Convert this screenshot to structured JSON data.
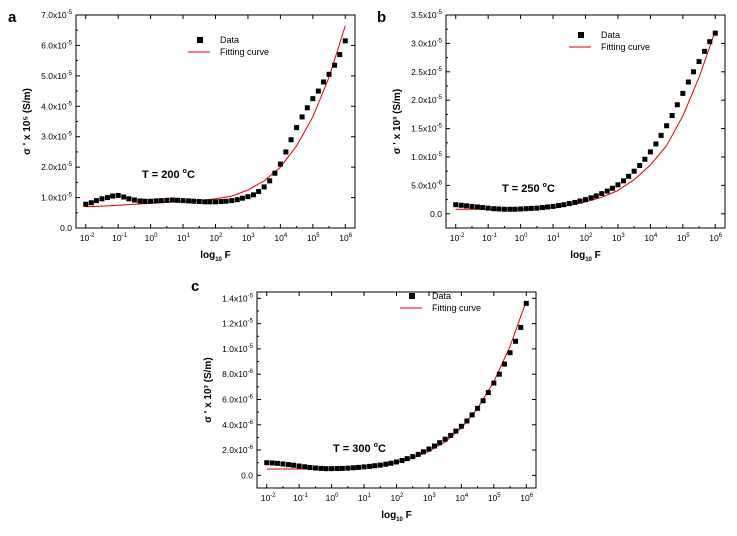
{
  "colors": {
    "data_marker": "#000000",
    "fit_curve": "#e00000",
    "axes": "#000000"
  },
  "chart_data": [
    {
      "panel_label": "a",
      "type": "scatter",
      "x_scale": "log10",
      "xlabel_main": "log",
      "xlabel_sub": "10",
      "xlabel_end": " F",
      "ylabel": "σ ' x 10⁵ (S/m)",
      "xlim": [
        -2.3,
        6.3
      ],
      "ylim": [
        0,
        7e-05
      ],
      "x_ticks": [
        -2,
        -1,
        0,
        1,
        2,
        3,
        4,
        5,
        6
      ],
      "x_tick_base": "10",
      "x_tick_exps": [
        "-2",
        "-1",
        "0",
        "1",
        "2",
        "3",
        "4",
        "5",
        "6"
      ],
      "y_ticks": [
        0,
        1e-05,
        2e-05,
        3e-05,
        4e-05,
        5e-05,
        6e-05,
        7e-05
      ],
      "y_tick_labels": [
        "0.0",
        "1.0x10",
        "2.0x10",
        "3.0x10",
        "4.0x10",
        "5.0x10",
        "6.0x10",
        "7.0x10"
      ],
      "y_tick_exp": "-5",
      "annotation": "T = 200 °C",
      "legend": [
        "Data",
        "Fitting curve"
      ],
      "series": [
        {
          "name": "Data",
          "x": [
            -2.0,
            -1.83,
            -1.67,
            -1.5,
            -1.33,
            -1.17,
            -1.0,
            -0.83,
            -0.67,
            -0.5,
            -0.33,
            -0.17,
            0.0,
            0.17,
            0.33,
            0.5,
            0.67,
            0.83,
            1.0,
            1.17,
            1.33,
            1.5,
            1.67,
            1.83,
            2.0,
            2.17,
            2.33,
            2.5,
            2.67,
            2.83,
            3.0,
            3.17,
            3.33,
            3.5,
            3.67,
            3.83,
            4.0,
            4.17,
            4.33,
            4.5,
            4.67,
            4.83,
            5.0,
            5.17,
            5.33,
            5.5,
            5.67,
            5.83,
            6.0
          ],
          "y": [
            7.8e-06,
            8.3e-06,
            9e-06,
            9.6e-06,
            1e-05,
            1.05e-05,
            1.07e-05,
            1.02e-05,
            9.6e-06,
            9.2e-06,
            8.9e-06,
            8.8e-06,
            8.8e-06,
            8.9e-06,
            9e-06,
            9.1e-06,
            9.2e-06,
            9.1e-06,
            9e-06,
            8.9e-06,
            8.8e-06,
            8.7e-06,
            8.6e-06,
            8.6e-06,
            8.6e-06,
            8.7e-06,
            8.8e-06,
            9e-06,
            9.3e-06,
            9.8e-06,
            1.03e-05,
            1.09e-05,
            1.2e-05,
            1.35e-05,
            1.55e-05,
            1.8e-05,
            2.1e-05,
            2.5e-05,
            2.9e-05,
            3.3e-05,
            3.65e-05,
            3.95e-05,
            4.25e-05,
            4.5e-05,
            4.8e-05,
            5.05e-05,
            5.35e-05,
            5.7e-05,
            6.15e-05
          ]
        },
        {
          "name": "Fitting curve",
          "x": [
            -2.0,
            -1.5,
            -1.0,
            -0.5,
            0.0,
            0.5,
            1.0,
            1.5,
            2.0,
            2.5,
            3.0,
            3.5,
            4.0,
            4.5,
            5.0,
            5.5,
            6.0
          ],
          "y": [
            7e-06,
            7.2e-06,
            7.5e-06,
            7.8e-06,
            8.1e-06,
            8.4e-06,
            8.7e-06,
            9e-06,
            9.6e-06,
            1.05e-05,
            1.25e-05,
            1.55e-05,
            2e-05,
            2.7e-05,
            3.65e-05,
            4.95e-05,
            6.65e-05
          ]
        }
      ]
    },
    {
      "panel_label": "b",
      "type": "scatter",
      "x_scale": "log10",
      "xlabel_main": "log",
      "xlabel_sub": "10",
      "xlabel_end": " F",
      "ylabel": "σ ' x 10³ (S/m)",
      "xlim": [
        -2.3,
        6.3
      ],
      "ylim": [
        -2.5e-06,
        3.5e-05
      ],
      "x_ticks": [
        -2,
        -1,
        0,
        1,
        2,
        3,
        4,
        5,
        6
      ],
      "x_tick_base": "10",
      "x_tick_exps": [
        "-2",
        "-1",
        "0",
        "1",
        "2",
        "3",
        "4",
        "5",
        "6"
      ],
      "y_ticks": [
        0,
        5e-06,
        1e-05,
        1.5e-05,
        2e-05,
        2.5e-05,
        3e-05,
        3.5e-05
      ],
      "y_tick_labels": [
        "0.0",
        "5.0x10",
        "1.0x10",
        "1.5x10",
        "2.0x10",
        "2.5x10",
        "3.0x10",
        "3.5x10"
      ],
      "y_tick_exps": [
        "",
        "-6",
        "-5",
        "-5",
        "-5",
        "-5",
        "-5",
        "-5"
      ],
      "annotation": "T = 250 °C",
      "legend": [
        "Data",
        "Fitting curve"
      ],
      "series": [
        {
          "name": "Data",
          "x": [
            -2.0,
            -1.83,
            -1.67,
            -1.5,
            -1.33,
            -1.17,
            -1.0,
            -0.83,
            -0.67,
            -0.5,
            -0.33,
            -0.17,
            0.0,
            0.17,
            0.33,
            0.5,
            0.67,
            0.83,
            1.0,
            1.17,
            1.33,
            1.5,
            1.67,
            1.83,
            2.0,
            2.17,
            2.33,
            2.5,
            2.67,
            2.83,
            3.0,
            3.17,
            3.33,
            3.5,
            3.67,
            3.83,
            4.0,
            4.17,
            4.33,
            4.5,
            4.67,
            4.83,
            5.0,
            5.17,
            5.33,
            5.5,
            5.67,
            5.83,
            6.0
          ],
          "y": [
            1.6e-06,
            1.5e-06,
            1.4e-06,
            1.3e-06,
            1.2e-06,
            1.1e-06,
            1e-06,
            9e-07,
            8.5e-07,
            8e-07,
            8e-07,
            8e-07,
            8.5e-07,
            9e-07,
            9.5e-07,
            1e-06,
            1.1e-06,
            1.2e-06,
            1.3e-06,
            1.45e-06,
            1.6e-06,
            1.8e-06,
            2e-06,
            2.25e-06,
            2.5e-06,
            2.8e-06,
            3.15e-06,
            3.55e-06,
            4e-06,
            4.5e-06,
            5.1e-06,
            5.8e-06,
            6.6e-06,
            7.5e-06,
            8.5e-06,
            9.6e-06,
            1.09e-05,
            1.23e-05,
            1.38e-05,
            1.55e-05,
            1.73e-05,
            1.92e-05,
            2.12e-05,
            2.32e-05,
            2.5e-05,
            2.68e-05,
            2.86e-05,
            3.03e-05,
            3.18e-05
          ]
        },
        {
          "name": "Fitting curve",
          "x": [
            -2.0,
            -1.5,
            -1.0,
            -0.5,
            0.0,
            0.5,
            1.0,
            1.5,
            2.0,
            2.5,
            3.0,
            3.5,
            4.0,
            4.5,
            5.0,
            5.5,
            6.0
          ],
          "y": [
            8e-07,
            8e-07,
            8e-07,
            8.2e-07,
            8.6e-07,
            9.5e-07,
            1.1e-06,
            1.5e-06,
            2.1e-06,
            2.9e-06,
            4.1e-06,
            6e-06,
            8.6e-06,
            1.2e-05,
            1.72e-05,
            2.4e-05,
            3.22e-05
          ]
        }
      ]
    },
    {
      "panel_label": "c",
      "type": "scatter",
      "x_scale": "log10",
      "xlabel_main": "log",
      "xlabel_sub": "10",
      "xlabel_end": " F",
      "ylabel": "σ ' x 10³ (S/m)",
      "xlim": [
        -2.3,
        6.3
      ],
      "ylim": [
        -1e-06,
        1.45e-05
      ],
      "x_ticks": [
        -2,
        -1,
        0,
        1,
        2,
        3,
        4,
        5,
        6
      ],
      "x_tick_base": "10",
      "x_tick_exps": [
        "-2",
        "-1",
        "0",
        "1",
        "2",
        "3",
        "4",
        "5",
        "6"
      ],
      "y_ticks": [
        0,
        2e-06,
        4e-06,
        6e-06,
        8e-06,
        1e-05,
        1.2e-05,
        1.4e-05
      ],
      "y_tick_labels": [
        "0.0",
        "2.0x10",
        "4.0x10",
        "6.0x10",
        "8.0x10",
        "1.0x10",
        "1.2x10",
        "1.4x10"
      ],
      "y_tick_exps": [
        "",
        "-6",
        "-6",
        "-6",
        "-6",
        "-5",
        "-5",
        "-5"
      ],
      "annotation": "T = 300 °C",
      "legend": [
        "Data",
        "Fitting curve"
      ],
      "series": [
        {
          "name": "Data",
          "x": [
            -2.0,
            -1.83,
            -1.67,
            -1.5,
            -1.33,
            -1.17,
            -1.0,
            -0.83,
            -0.67,
            -0.5,
            -0.33,
            -0.17,
            0.0,
            0.17,
            0.33,
            0.5,
            0.67,
            0.83,
            1.0,
            1.17,
            1.33,
            1.5,
            1.67,
            1.83,
            2.0,
            2.17,
            2.33,
            2.5,
            2.67,
            2.83,
            3.0,
            3.17,
            3.33,
            3.5,
            3.67,
            3.83,
            4.0,
            4.17,
            4.33,
            4.5,
            4.67,
            4.83,
            5.0,
            5.17,
            5.33,
            5.5,
            5.67,
            5.83,
            6.0
          ],
          "y": [
            1e-06,
            9.8e-07,
            9.5e-07,
            9e-07,
            8.5e-07,
            8e-07,
            7.4e-07,
            6.8e-07,
            6.2e-07,
            5.8e-07,
            5.5e-07,
            5.3e-07,
            5.3e-07,
            5.4e-07,
            5.5e-07,
            5.7e-07,
            6e-07,
            6.3e-07,
            6.7e-07,
            7.1e-07,
            7.6e-07,
            8.1e-07,
            8.8e-07,
            9.6e-07,
            1.06e-06,
            1.18e-06,
            1.32e-06,
            1.48e-06,
            1.66e-06,
            1.86e-06,
            2.08e-06,
            2.32e-06,
            2.58e-06,
            2.86e-06,
            3.16e-06,
            3.5e-06,
            3.88e-06,
            4.3e-06,
            4.78e-06,
            5.3e-06,
            5.9e-06,
            6.55e-06,
            7.3e-06,
            8e-06,
            8.8e-06,
            9.7e-06,
            1.06e-05,
            1.17e-05,
            1.36e-05
          ]
        },
        {
          "name": "Fitting curve",
          "x": [
            -2.0,
            -1.5,
            -1.0,
            -0.5,
            0.0,
            0.5,
            1.0,
            1.5,
            2.0,
            2.5,
            3.0,
            3.5,
            4.0,
            4.5,
            5.0,
            5.5,
            6.0
          ],
          "y": [
            5e-07,
            5e-07,
            5e-07,
            5e-07,
            5.1e-07,
            5.5e-07,
            6.4e-07,
            7.8e-07,
            1e-06,
            1.35e-06,
            1.9e-06,
            2.65e-06,
            3.75e-06,
            5.3e-06,
            7.4e-06,
            1.02e-05,
            1.38e-05
          ]
        }
      ]
    }
  ]
}
